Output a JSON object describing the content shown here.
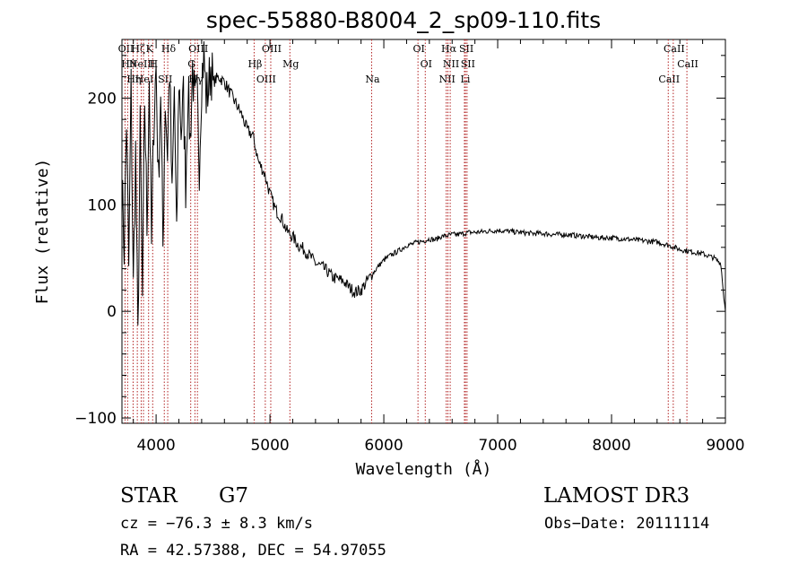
{
  "chart_data": {
    "type": "line",
    "title": "spec-55880-B8004_2_sp09-110.fits",
    "xlabel": "Wavelength (Å)",
    "ylabel": "Flux (relative)",
    "xlim": [
      3700,
      9000
    ],
    "ylim": [
      -105,
      255
    ],
    "x_ticks": [
      4000,
      5000,
      6000,
      7000,
      8000,
      9000
    ],
    "x_tick_labels": [
      "4000",
      "5000",
      "6000",
      "7000",
      "8000",
      "9000"
    ],
    "y_ticks": [
      -100,
      0,
      100,
      200
    ],
    "y_tick_labels": [
      "−100",
      "0",
      "100",
      "200"
    ],
    "series": [
      {
        "name": "flux",
        "x": [
          3700,
          3720,
          3740,
          3760,
          3780,
          3800,
          3820,
          3840,
          3860,
          3880,
          3900,
          3920,
          3940,
          3960,
          3980,
          4000,
          4020,
          4040,
          4060,
          4080,
          4100,
          4120,
          4140,
          4160,
          4180,
          4200,
          4220,
          4240,
          4260,
          4280,
          4300,
          4320,
          4340,
          4360,
          4380,
          4400,
          4420,
          4440,
          4460,
          4480,
          4500,
          4550,
          4600,
          4650,
          4700,
          4750,
          4800,
          4850,
          4900,
          4950,
          5000,
          5050,
          5100,
          5150,
          5200,
          5250,
          5300,
          5350,
          5400,
          5450,
          5500,
          5550,
          5600,
          5650,
          5700,
          5750,
          5800,
          5850,
          5900,
          5950,
          6000,
          6050,
          6100,
          6150,
          6200,
          6250,
          6300,
          6350,
          6400,
          6450,
          6500,
          6550,
          6600,
          6650,
          6700,
          6750,
          6800,
          6900,
          7000,
          7100,
          7200,
          7300,
          7400,
          7500,
          7600,
          7700,
          7800,
          7900,
          8000,
          8100,
          8200,
          8300,
          8400,
          8500,
          8550,
          8600,
          8700,
          8800,
          8900,
          8960,
          8980,
          9000
        ],
        "y": [
          120,
          60,
          180,
          40,
          210,
          20,
          150,
          -30,
          170,
          10,
          200,
          80,
          220,
          60,
          180,
          230,
          120,
          210,
          60,
          200,
          150,
          230,
          100,
          210,
          60,
          220,
          170,
          200,
          120,
          210,
          160,
          230,
          190,
          200,
          140,
          220,
          240,
          200,
          210,
          230,
          215,
          220,
          215,
          205,
          195,
          185,
          170,
          165,
          140,
          130,
          110,
          95,
          88,
          75,
          70,
          62,
          58,
          52,
          45,
          42,
          38,
          32,
          30,
          28,
          22,
          18,
          20,
          28,
          35,
          42,
          48,
          52,
          55,
          58,
          62,
          63,
          65,
          66,
          68,
          67,
          70,
          71,
          72,
          72,
          73,
          74,
          74,
          75,
          76,
          75,
          74,
          73,
          73,
          72,
          72,
          71,
          70,
          69,
          69,
          68,
          67,
          66,
          65,
          62,
          60,
          58,
          56,
          54,
          50,
          45,
          20,
          0
        ]
      }
    ],
    "lines": [
      {
        "wavelength": 3727,
        "label": "OII"
      },
      {
        "wavelength": 3750,
        "label": "Hθ"
      },
      {
        "wavelength": 3798,
        "label": "Hη"
      },
      {
        "wavelength": 3835,
        "label": "Hζ"
      },
      {
        "wavelength": 3869,
        "label": "NeIII"
      },
      {
        "wavelength": 3889,
        "label": "HeI"
      },
      {
        "wavelength": 3934,
        "label": "K"
      },
      {
        "wavelength": 3970,
        "label": "H"
      },
      {
        "wavelength": 4072,
        "label": "SII"
      },
      {
        "wavelength": 4102,
        "label": "Hδ"
      },
      {
        "wavelength": 4304,
        "label": "G"
      },
      {
        "wavelength": 4341,
        "label": "Hγ"
      },
      {
        "wavelength": 4363,
        "label": "OIII"
      },
      {
        "wavelength": 4861,
        "label": "Hβ"
      },
      {
        "wavelength": 4959,
        "label": "OIII"
      },
      {
        "wavelength": 5007,
        "label": "OIII"
      },
      {
        "wavelength": 5175,
        "label": "Mg"
      },
      {
        "wavelength": 5893,
        "label": "Na"
      },
      {
        "wavelength": 6300,
        "label": "OI"
      },
      {
        "wavelength": 6364,
        "label": "OI"
      },
      {
        "wavelength": 6548,
        "label": "NII"
      },
      {
        "wavelength": 6563,
        "label": "Hα"
      },
      {
        "wavelength": 6583,
        "label": "NII"
      },
      {
        "wavelength": 6708,
        "label": "Li"
      },
      {
        "wavelength": 6717,
        "label": "SII"
      },
      {
        "wavelength": 6731,
        "label": "SII"
      },
      {
        "wavelength": 8498,
        "label": "CaII"
      },
      {
        "wavelength": 8542,
        "label": "CaII"
      },
      {
        "wavelength": 8662,
        "label": "CaII"
      }
    ]
  },
  "info": {
    "object_class": "STAR",
    "subclass": "G7",
    "survey": "LAMOST DR3",
    "redshift": "cz = −76.3 ± 8.3 km/s",
    "obs_date": "Obs−Date: 20111114",
    "coords": "RA =  42.57388, DEC =  54.97055"
  },
  "colors": {
    "line_marker": "#b22222",
    "spectrum": "#000000"
  }
}
